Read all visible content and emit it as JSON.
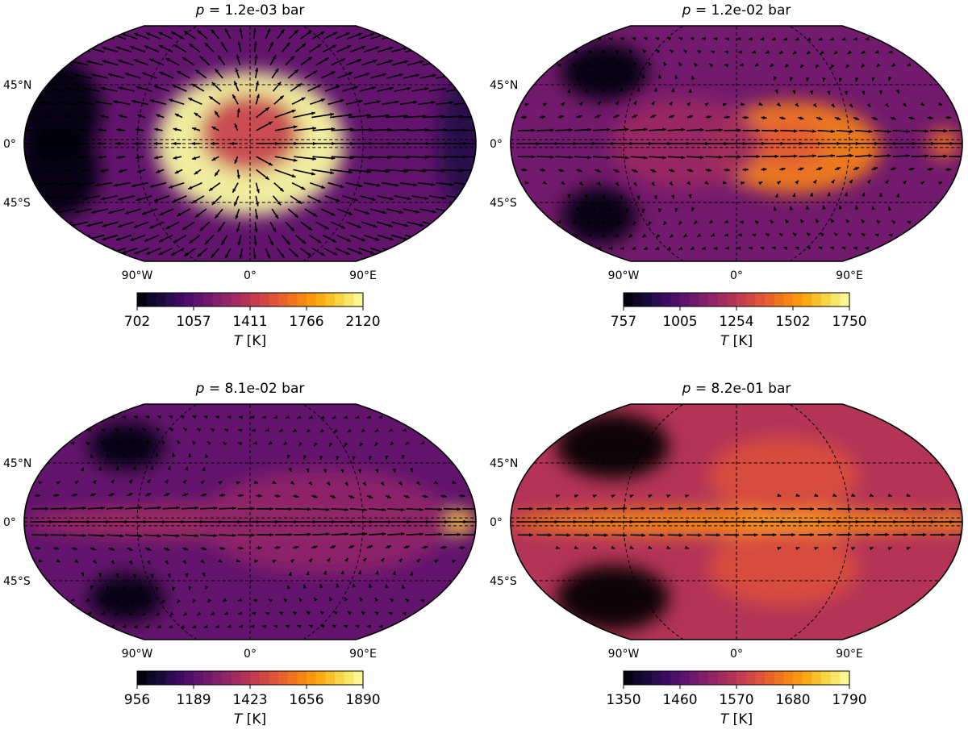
{
  "chart_data": [
    {
      "type": "heatmap",
      "title_var": "p",
      "title_value": "1.2e-03 bar",
      "projection": "Robinson",
      "lon_ticks": [
        "90°W",
        "0°",
        "90°E"
      ],
      "lat_ticks": [
        "45°N",
        "0°",
        "45°S"
      ],
      "colorbar": {
        "ticks": [
          "702",
          "1057",
          "1411",
          "1766",
          "2120"
        ],
        "range": [
          702,
          2120
        ],
        "label_var": "T",
        "label_unit": "[K]",
        "colormap": "inferno"
      },
      "hotspot": {
        "lon": 0,
        "lat": 0
      },
      "wind_pattern": "day-to-night divergent flow"
    },
    {
      "type": "heatmap",
      "title_var": "p",
      "title_value": "1.2e-02 bar",
      "projection": "Robinson",
      "lon_ticks": [
        "90°W",
        "0°",
        "90°E"
      ],
      "lat_ticks": [
        "45°N",
        "0°",
        "45°S"
      ],
      "colorbar": {
        "ticks": [
          "757",
          "1005",
          "1254",
          "1502",
          "1750"
        ],
        "range": [
          757,
          1750
        ],
        "label_var": "T",
        "label_unit": "[K]",
        "colormap": "inferno"
      },
      "hotspot": {
        "lon": 40,
        "lat": 0
      },
      "wind_pattern": "eastward equatorial jet"
    },
    {
      "type": "heatmap",
      "title_var": "p",
      "title_value": "8.1e-02 bar",
      "projection": "Robinson",
      "lon_ticks": [
        "90°W",
        "0°",
        "90°E"
      ],
      "lat_ticks": [
        "45°N",
        "0°",
        "45°S"
      ],
      "colorbar": {
        "ticks": [
          "956",
          "1189",
          "1423",
          "1656",
          "1890"
        ],
        "range": [
          956,
          1890
        ],
        "label_var": "T",
        "label_unit": "[K]",
        "colormap": "inferno"
      },
      "hotspot": {
        "lon": 165,
        "lat": 0
      },
      "wind_pattern": "eastward equatorial jet"
    },
    {
      "type": "heatmap",
      "title_var": "p",
      "title_value": "8.2e-01 bar",
      "projection": "Robinson",
      "lon_ticks": [
        "90°W",
        "0°",
        "90°E"
      ],
      "lat_ticks": [
        "45°N",
        "0°",
        "45°S"
      ],
      "colorbar": {
        "ticks": [
          "1350",
          "1460",
          "1570",
          "1680",
          "1790"
        ],
        "range": [
          1350,
          1790
        ],
        "label_var": "T",
        "label_unit": "[K]",
        "colormap": "inferno"
      },
      "hotspot": {
        "lon": 40,
        "lat": 0
      },
      "wind_pattern": "eastward equatorial jet"
    }
  ]
}
